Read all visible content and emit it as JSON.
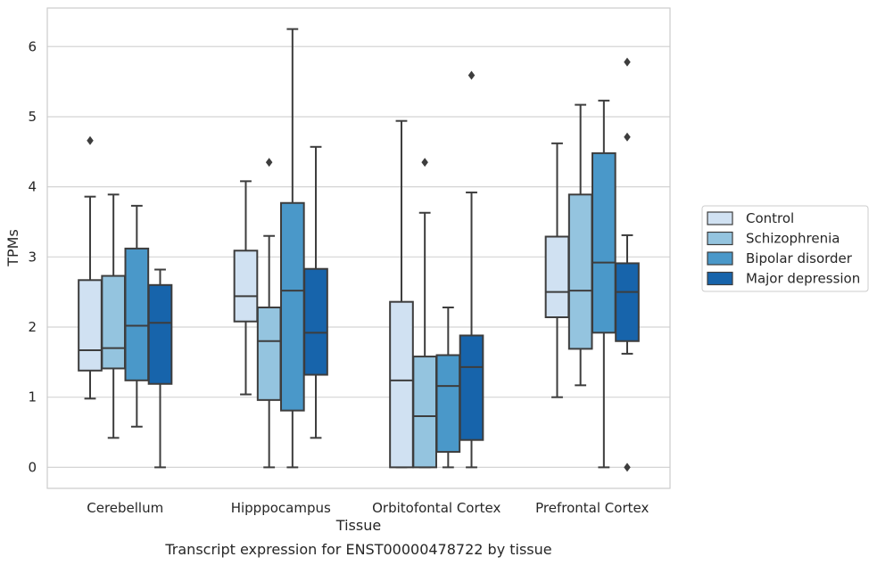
{
  "chart_data": {
    "type": "box",
    "title": "",
    "caption": "Transcript expression for ENST00000478722 by tissue",
    "xlabel": "Tissue",
    "ylabel": "TPMs",
    "ylim": [
      -0.3,
      6.55
    ],
    "yticks": [
      "0",
      "1",
      "2",
      "3",
      "4",
      "5",
      "6"
    ],
    "grid": true,
    "legend_position": "right",
    "categories": [
      "Cerebellum",
      "Hipppocampus",
      "Orbitofontal Cortex",
      "Prefrontal Cortex"
    ],
    "series": [
      {
        "name": "Control",
        "color": "#d0e1f2",
        "boxes": [
          {
            "whislo": 0.98,
            "q1": 1.38,
            "med": 1.67,
            "q3": 2.67,
            "whishi": 3.86,
            "fliers": [
              4.66
            ]
          },
          {
            "whislo": 1.04,
            "q1": 2.08,
            "med": 2.44,
            "q3": 3.09,
            "whishi": 4.08,
            "fliers": []
          },
          {
            "whislo": 0.0,
            "q1": 0.0,
            "med": 1.24,
            "q3": 2.36,
            "whishi": 4.94,
            "fliers": []
          },
          {
            "whislo": 1.0,
            "q1": 2.14,
            "med": 2.5,
            "q3": 3.29,
            "whishi": 4.62,
            "fliers": []
          }
        ]
      },
      {
        "name": "Schizophrenia",
        "color": "#94c4df",
        "boxes": [
          {
            "whislo": 0.42,
            "q1": 1.41,
            "med": 1.7,
            "q3": 2.73,
            "whishi": 3.89,
            "fliers": []
          },
          {
            "whislo": 0.0,
            "q1": 0.96,
            "med": 1.8,
            "q3": 2.28,
            "whishi": 3.3,
            "fliers": [
              4.35
            ]
          },
          {
            "whislo": 0.0,
            "q1": 0.0,
            "med": 0.73,
            "q3": 1.58,
            "whishi": 3.63,
            "fliers": [
              4.35
            ]
          },
          {
            "whislo": 1.17,
            "q1": 1.69,
            "med": 2.52,
            "q3": 3.89,
            "whishi": 5.17,
            "fliers": []
          }
        ]
      },
      {
        "name": "Bipolar disorder",
        "color": "#4a98c9",
        "boxes": [
          {
            "whislo": 0.58,
            "q1": 1.24,
            "med": 2.02,
            "q3": 3.12,
            "whishi": 3.73,
            "fliers": []
          },
          {
            "whislo": 0.0,
            "q1": 0.81,
            "med": 2.52,
            "q3": 3.77,
            "whishi": 6.25,
            "fliers": []
          },
          {
            "whislo": 0.0,
            "q1": 0.22,
            "med": 1.16,
            "q3": 1.6,
            "whishi": 2.28,
            "fliers": []
          },
          {
            "whislo": 0.0,
            "q1": 1.92,
            "med": 2.92,
            "q3": 4.48,
            "whishi": 5.23,
            "fliers": []
          }
        ]
      },
      {
        "name": "Major depression",
        "color": "#1764ab",
        "boxes": [
          {
            "whislo": 0.0,
            "q1": 1.19,
            "med": 2.06,
            "q3": 2.6,
            "whishi": 2.82,
            "fliers": []
          },
          {
            "whislo": 0.42,
            "q1": 1.32,
            "med": 1.92,
            "q3": 2.83,
            "whishi": 4.57,
            "fliers": []
          },
          {
            "whislo": 0.0,
            "q1": 0.39,
            "med": 1.43,
            "q3": 1.88,
            "whishi": 3.92,
            "fliers": [
              5.59
            ]
          },
          {
            "whislo": 1.62,
            "q1": 1.8,
            "med": 2.5,
            "q3": 2.91,
            "whishi": 3.31,
            "fliers": [
              0.0,
              4.71,
              5.78
            ]
          }
        ]
      }
    ]
  }
}
